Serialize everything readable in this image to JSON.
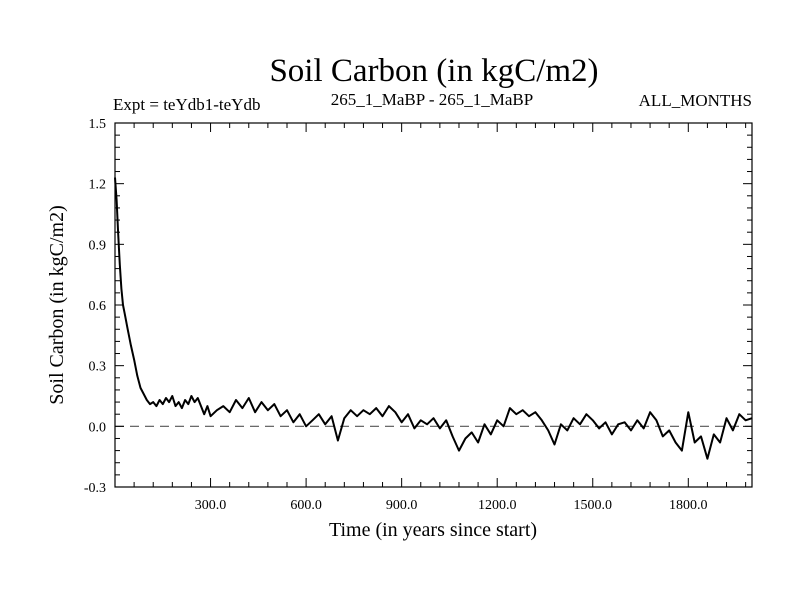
{
  "chart_data": {
    "type": "line",
    "title": "Soil Carbon (in kgC/m2)",
    "subtitle_left": "Expt = teYdb1-teYdb",
    "subtitle_center": "265_1_MaBP - 265_1_MaBP",
    "subtitle_right": "ALL_MONTHS",
    "xlabel": "Time (in years since start)",
    "ylabel": "Soil Carbon (in kgC/m2)",
    "xlim": [
      0,
      2000
    ],
    "ylim": [
      -0.3,
      1.5
    ],
    "x_ticks": [
      300,
      600,
      900,
      1200,
      1500,
      1800
    ],
    "x_tick_labels": [
      "300.0",
      "600.0",
      "900.0",
      "1200.0",
      "1500.0",
      "1800.0"
    ],
    "y_ticks": [
      -0.3,
      0.0,
      0.3,
      0.6,
      0.9,
      1.2,
      1.5
    ],
    "y_tick_labels": [
      "-0.3",
      "0.0",
      "0.3",
      "0.6",
      "0.9",
      "1.2",
      "1.5"
    ],
    "reference_line": 0.0,
    "series": [
      {
        "name": "Soil Carbon",
        "x": [
          0,
          5,
          10,
          15,
          20,
          25,
          30,
          40,
          50,
          60,
          70,
          80,
          90,
          100,
          110,
          120,
          130,
          140,
          150,
          160,
          170,
          180,
          190,
          200,
          210,
          220,
          230,
          240,
          250,
          260,
          270,
          280,
          290,
          300,
          320,
          340,
          360,
          380,
          400,
          420,
          440,
          460,
          480,
          500,
          520,
          540,
          560,
          580,
          600,
          620,
          640,
          660,
          680,
          700,
          720,
          740,
          760,
          780,
          800,
          820,
          840,
          860,
          880,
          900,
          920,
          940,
          960,
          980,
          1000,
          1020,
          1040,
          1060,
          1080,
          1100,
          1120,
          1140,
          1160,
          1180,
          1200,
          1220,
          1240,
          1260,
          1280,
          1300,
          1320,
          1340,
          1360,
          1380,
          1400,
          1420,
          1440,
          1460,
          1480,
          1500,
          1520,
          1540,
          1560,
          1580,
          1600,
          1620,
          1640,
          1660,
          1680,
          1700,
          1720,
          1740,
          1760,
          1780,
          1800,
          1820,
          1840,
          1860,
          1880,
          1900,
          1920,
          1940,
          1960,
          1980,
          2000
        ],
        "y": [
          1.23,
          1.12,
          0.95,
          0.8,
          0.68,
          0.6,
          0.56,
          0.48,
          0.4,
          0.33,
          0.25,
          0.19,
          0.16,
          0.13,
          0.11,
          0.12,
          0.1,
          0.13,
          0.11,
          0.14,
          0.12,
          0.15,
          0.1,
          0.12,
          0.09,
          0.13,
          0.11,
          0.15,
          0.12,
          0.14,
          0.1,
          0.06,
          0.1,
          0.05,
          0.08,
          0.1,
          0.07,
          0.13,
          0.09,
          0.14,
          0.07,
          0.12,
          0.08,
          0.11,
          0.05,
          0.08,
          0.02,
          0.06,
          0.0,
          0.03,
          0.06,
          0.01,
          0.05,
          -0.07,
          0.04,
          0.08,
          0.05,
          0.08,
          0.06,
          0.09,
          0.05,
          0.1,
          0.07,
          0.02,
          0.06,
          -0.01,
          0.03,
          0.01,
          0.04,
          -0.01,
          0.03,
          -0.05,
          -0.12,
          -0.06,
          -0.03,
          -0.08,
          0.01,
          -0.04,
          0.03,
          0.0,
          0.09,
          0.06,
          0.08,
          0.05,
          0.07,
          0.03,
          -0.02,
          -0.09,
          0.01,
          -0.02,
          0.04,
          0.01,
          0.06,
          0.03,
          -0.01,
          0.02,
          -0.04,
          0.01,
          0.02,
          -0.02,
          0.03,
          -0.01,
          0.07,
          0.03,
          -0.05,
          -0.02,
          -0.08,
          -0.12,
          0.07,
          -0.08,
          -0.05,
          -0.16,
          -0.04,
          -0.08,
          0.04,
          -0.02,
          0.06,
          0.03,
          0.04
        ]
      }
    ]
  }
}
